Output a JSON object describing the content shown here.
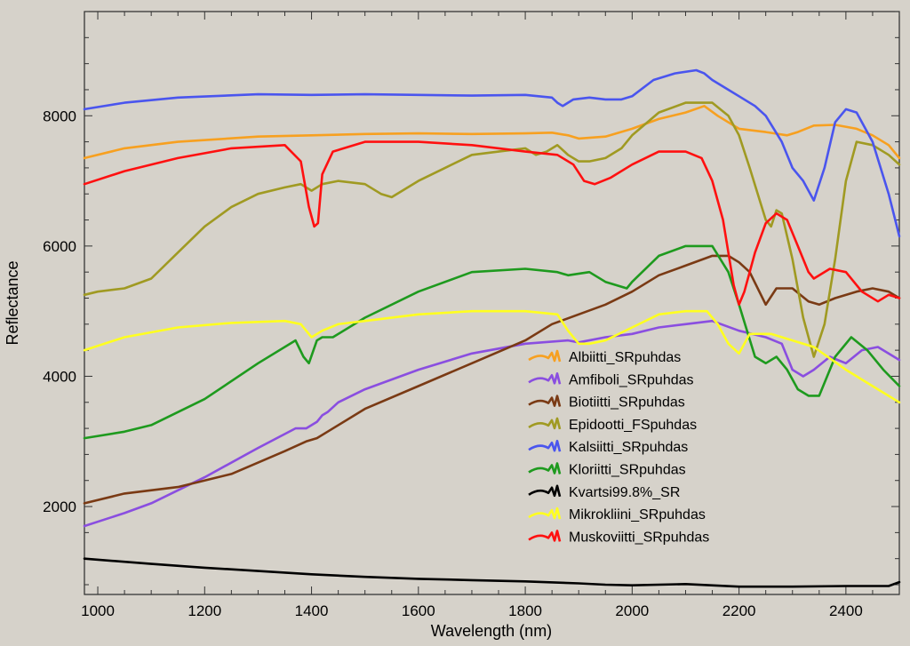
{
  "chart_data": {
    "type": "line",
    "title": "",
    "xlabel": "Wavelength (nm)",
    "ylabel": "Reflectance",
    "xlim": [
      975,
      2500
    ],
    "ylim": [
      650,
      9600
    ],
    "x_ticks": [
      1000,
      1200,
      1400,
      1600,
      1800,
      2000,
      2200,
      2400
    ],
    "y_ticks": [
      2000,
      4000,
      6000,
      8000
    ],
    "grid": false,
    "legend_position": "center-right",
    "series": [
      {
        "name": "Albiitti_SRpuhdas",
        "color": "#f7a020",
        "x": [
          975,
          1050,
          1150,
          1300,
          1400,
          1500,
          1600,
          1700,
          1800,
          1850,
          1880,
          1900,
          1950,
          2000,
          2050,
          2100,
          2135,
          2160,
          2200,
          2250,
          2290,
          2310,
          2340,
          2380,
          2420,
          2450,
          2480,
          2500
        ],
        "y": [
          7350,
          7500,
          7600,
          7680,
          7700,
          7720,
          7730,
          7720,
          7730,
          7740,
          7700,
          7650,
          7680,
          7800,
          7950,
          8050,
          8150,
          8000,
          7800,
          7750,
          7700,
          7750,
          7850,
          7860,
          7800,
          7700,
          7550,
          7350
        ]
      },
      {
        "name": "Amfiboli_SRpuhdas",
        "color": "#8a4ee0",
        "x": [
          975,
          1050,
          1100,
          1200,
          1300,
          1370,
          1390,
          1410,
          1420,
          1430,
          1450,
          1500,
          1600,
          1700,
          1800,
          1880,
          1900,
          1950,
          2000,
          2050,
          2100,
          2150,
          2200,
          2250,
          2280,
          2300,
          2320,
          2340,
          2370,
          2400,
          2430,
          2460,
          2500
        ],
        "y": [
          1700,
          1900,
          2050,
          2450,
          2900,
          3200,
          3200,
          3300,
          3400,
          3450,
          3600,
          3800,
          4100,
          4350,
          4500,
          4550,
          4520,
          4600,
          4650,
          4750,
          4800,
          4850,
          4700,
          4600,
          4500,
          4100,
          4000,
          4100,
          4300,
          4200,
          4400,
          4450,
          4250
        ]
      },
      {
        "name": "Biotiitti_SRpuhdas",
        "color": "#7a3a14",
        "x": [
          975,
          1050,
          1150,
          1250,
          1350,
          1390,
          1410,
          1430,
          1500,
          1600,
          1700,
          1800,
          1850,
          1900,
          1950,
          2000,
          2050,
          2100,
          2150,
          2180,
          2200,
          2220,
          2250,
          2270,
          2300,
          2330,
          2350,
          2380,
          2420,
          2450,
          2480,
          2500
        ],
        "y": [
          2050,
          2200,
          2300,
          2500,
          2850,
          3000,
          3050,
          3150,
          3500,
          3850,
          4200,
          4550,
          4800,
          4950,
          5100,
          5300,
          5550,
          5700,
          5850,
          5850,
          5750,
          5600,
          5100,
          5350,
          5350,
          5150,
          5100,
          5200,
          5300,
          5350,
          5300,
          5200
        ]
      },
      {
        "name": "Epidootti_FSpuhdas",
        "color": "#a09a22",
        "x": [
          975,
          1000,
          1050,
          1100,
          1150,
          1200,
          1250,
          1300,
          1350,
          1380,
          1400,
          1420,
          1450,
          1500,
          1530,
          1550,
          1600,
          1650,
          1700,
          1750,
          1800,
          1820,
          1840,
          1860,
          1880,
          1900,
          1920,
          1950,
          1980,
          2000,
          2050,
          2100,
          2150,
          2180,
          2200,
          2220,
          2250,
          2260,
          2270,
          2280,
          2300,
          2320,
          2340,
          2360,
          2380,
          2400,
          2420,
          2450,
          2480,
          2500
        ],
        "y": [
          5250,
          5300,
          5350,
          5500,
          5900,
          6300,
          6600,
          6800,
          6900,
          6950,
          6850,
          6950,
          7000,
          6950,
          6800,
          6750,
          7000,
          7200,
          7400,
          7450,
          7500,
          7400,
          7450,
          7550,
          7400,
          7300,
          7300,
          7350,
          7500,
          7700,
          8050,
          8200,
          8200,
          8000,
          7700,
          7200,
          6400,
          6300,
          6550,
          6500,
          5800,
          4900,
          4300,
          4800,
          5800,
          7000,
          7600,
          7550,
          7400,
          7250
        ]
      },
      {
        "name": "Kalsiitti_SRpuhdas",
        "color": "#4a55ee",
        "x": [
          975,
          1050,
          1150,
          1300,
          1400,
          1500,
          1600,
          1700,
          1800,
          1850,
          1860,
          1870,
          1890,
          1920,
          1950,
          1980,
          2000,
          2040,
          2080,
          2120,
          2135,
          2150,
          2180,
          2200,
          2230,
          2250,
          2280,
          2300,
          2320,
          2340,
          2360,
          2380,
          2400,
          2420,
          2450,
          2480,
          2500
        ],
        "y": [
          8100,
          8200,
          8280,
          8330,
          8320,
          8330,
          8320,
          8310,
          8320,
          8280,
          8200,
          8150,
          8250,
          8280,
          8250,
          8250,
          8300,
          8550,
          8650,
          8700,
          8650,
          8550,
          8400,
          8300,
          8150,
          8000,
          7600,
          7200,
          7000,
          6700,
          7200,
          7900,
          8100,
          8050,
          7600,
          6800,
          6150
        ]
      },
      {
        "name": "Kloriitti_SRpuhdas",
        "color": "#1e9a1e",
        "x": [
          975,
          1050,
          1100,
          1200,
          1300,
          1370,
          1385,
          1395,
          1410,
          1420,
          1440,
          1500,
          1600,
          1700,
          1800,
          1860,
          1880,
          1920,
          1950,
          1990,
          2000,
          2050,
          2100,
          2150,
          2180,
          2200,
          2230,
          2250,
          2270,
          2290,
          2310,
          2330,
          2350,
          2380,
          2410,
          2440,
          2470,
          2500
        ],
        "y": [
          3050,
          3150,
          3250,
          3650,
          4200,
          4550,
          4300,
          4200,
          4550,
          4600,
          4600,
          4900,
          5300,
          5600,
          5650,
          5600,
          5550,
          5600,
          5450,
          5350,
          5450,
          5850,
          6000,
          6000,
          5600,
          5100,
          4300,
          4200,
          4300,
          4100,
          3800,
          3700,
          3700,
          4300,
          4600,
          4400,
          4100,
          3850
        ]
      },
      {
        "name": "Kvartsi99.8%_SR",
        "color": "#000000",
        "x": [
          975,
          1100,
          1200,
          1300,
          1400,
          1500,
          1600,
          1700,
          1800,
          1900,
          1950,
          2000,
          2100,
          2200,
          2300,
          2400,
          2480,
          2500
        ],
        "y": [
          1200,
          1120,
          1060,
          1010,
          960,
          920,
          890,
          870,
          850,
          820,
          800,
          790,
          810,
          770,
          770,
          780,
          780,
          840
        ]
      },
      {
        "name": "Mikrokliini_SRpuhdas",
        "color": "#ffff20",
        "x": [
          975,
          1050,
          1150,
          1250,
          1350,
          1380,
          1400,
          1420,
          1450,
          1500,
          1600,
          1700,
          1800,
          1860,
          1880,
          1900,
          1920,
          1950,
          2000,
          2050,
          2100,
          2140,
          2160,
          2180,
          2200,
          2220,
          2260,
          2300,
          2340,
          2400,
          2450,
          2500
        ],
        "y": [
          4400,
          4600,
          4750,
          4820,
          4850,
          4800,
          4600,
          4700,
          4800,
          4850,
          4950,
          5000,
          5000,
          4950,
          4700,
          4500,
          4500,
          4550,
          4750,
          4950,
          5000,
          5000,
          4800,
          4500,
          4350,
          4650,
          4650,
          4550,
          4450,
          4100,
          3850,
          3600
        ]
      },
      {
        "name": "Muskoviitti_SRpuhdas",
        "color": "#ff1010",
        "x": [
          975,
          1050,
          1150,
          1250,
          1350,
          1380,
          1395,
          1405,
          1412,
          1420,
          1440,
          1500,
          1600,
          1700,
          1800,
          1860,
          1890,
          1910,
          1930,
          1960,
          2000,
          2050,
          2100,
          2130,
          2150,
          2170,
          2190,
          2200,
          2210,
          2230,
          2250,
          2270,
          2290,
          2310,
          2330,
          2340,
          2370,
          2400,
          2430,
          2460,
          2480,
          2500
        ],
        "y": [
          6950,
          7150,
          7350,
          7500,
          7550,
          7300,
          6600,
          6300,
          6350,
          7100,
          7450,
          7600,
          7600,
          7550,
          7450,
          7400,
          7250,
          7000,
          6950,
          7050,
          7250,
          7450,
          7450,
          7350,
          7000,
          6400,
          5400,
          5100,
          5300,
          5900,
          6350,
          6500,
          6400,
          6000,
          5600,
          5500,
          5650,
          5600,
          5300,
          5150,
          5250,
          5200
        ]
      }
    ]
  }
}
